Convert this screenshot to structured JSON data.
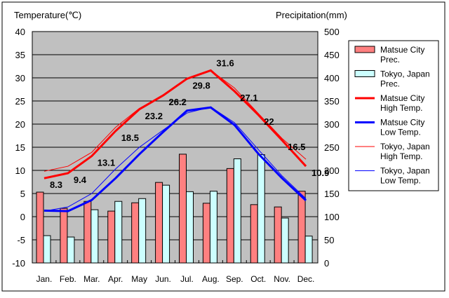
{
  "chart_data": {
    "type": "bar+line",
    "y_left_label": "Temperature(℃)",
    "y_right_label": "Precipitation(mm)",
    "y_left_range": [
      -10,
      40
    ],
    "y_left_ticks": [
      "40",
      "35",
      "30",
      "25",
      "20",
      "15",
      "10",
      "5",
      "0",
      "-5",
      "-10"
    ],
    "y_right_range": [
      0,
      500
    ],
    "y_right_ticks": [
      "500",
      "450",
      "400",
      "350",
      "300",
      "250",
      "200",
      "150",
      "100",
      "50",
      "0"
    ],
    "grid": true,
    "legend_position": "right",
    "categories": [
      "Jan.",
      "Feb.",
      "Mar.",
      "Apr.",
      "May",
      "Jun.",
      "Jul.",
      "Aug.",
      "Sep.",
      "Oct.",
      "Nov.",
      "Dec."
    ],
    "bar_series": [
      {
        "name": "Matsue City Prec.",
        "legend": [
          "Matsue City",
          "Prec."
        ],
        "color": "#ff8080",
        "values": [
          153,
          118,
          133,
          112,
          130,
          174,
          235,
          129,
          204,
          126,
          121,
          155
        ]
      },
      {
        "name": "Tokyo, Japan Prec.",
        "legend": [
          "Tokyo, Japan",
          "Prec."
        ],
        "color": "#ccffff",
        "values": [
          59,
          56,
          115,
          133,
          139,
          168,
          154,
          155,
          225,
          234,
          97,
          58
        ]
      }
    ],
    "line_series": [
      {
        "name": "Matsue City High Temp.",
        "legend": [
          "Matsue City",
          "High Temp."
        ],
        "color": "#ff0000",
        "width": "thick",
        "values": [
          8.3,
          9.4,
          13.1,
          18.5,
          23.2,
          26.2,
          29.8,
          31.6,
          27.1,
          22,
          16.5,
          10.9
        ],
        "labels": [
          "8.3",
          "9.4",
          "13.1",
          "18.5",
          "23.2",
          "26.2",
          "29.8",
          "31.6",
          "27.1",
          "22",
          "16.5",
          "10.9"
        ]
      },
      {
        "name": "Matsue City Low Temp.",
        "legend": [
          "Matsue City",
          "Low Temp."
        ],
        "color": "#0000ff",
        "width": "thick",
        "values": [
          1.3,
          1.2,
          3.6,
          8.3,
          13.5,
          18.3,
          22.9,
          23.6,
          19.8,
          13.6,
          8.3,
          3.5
        ]
      },
      {
        "name": "Tokyo, Japan High Temp.",
        "legend": [
          "Tokyo, Japan",
          "High Temp."
        ],
        "color": "#ff0000",
        "width": "thin",
        "values": [
          9.8,
          10.9,
          13.9,
          19.3,
          23.4,
          26.2,
          29.8,
          31.6,
          27.8,
          22.3,
          16.9,
          12.4
        ]
      },
      {
        "name": "Tokyo, Japan Low Temp.",
        "legend": [
          "Tokyo, Japan",
          "Low Temp."
        ],
        "color": "#0000ff",
        "width": "thin",
        "values": [
          1.2,
          2.1,
          5.0,
          10.3,
          15.0,
          18.7,
          22.4,
          23.7,
          20.3,
          14.5,
          8.8,
          3.9
        ]
      }
    ]
  }
}
